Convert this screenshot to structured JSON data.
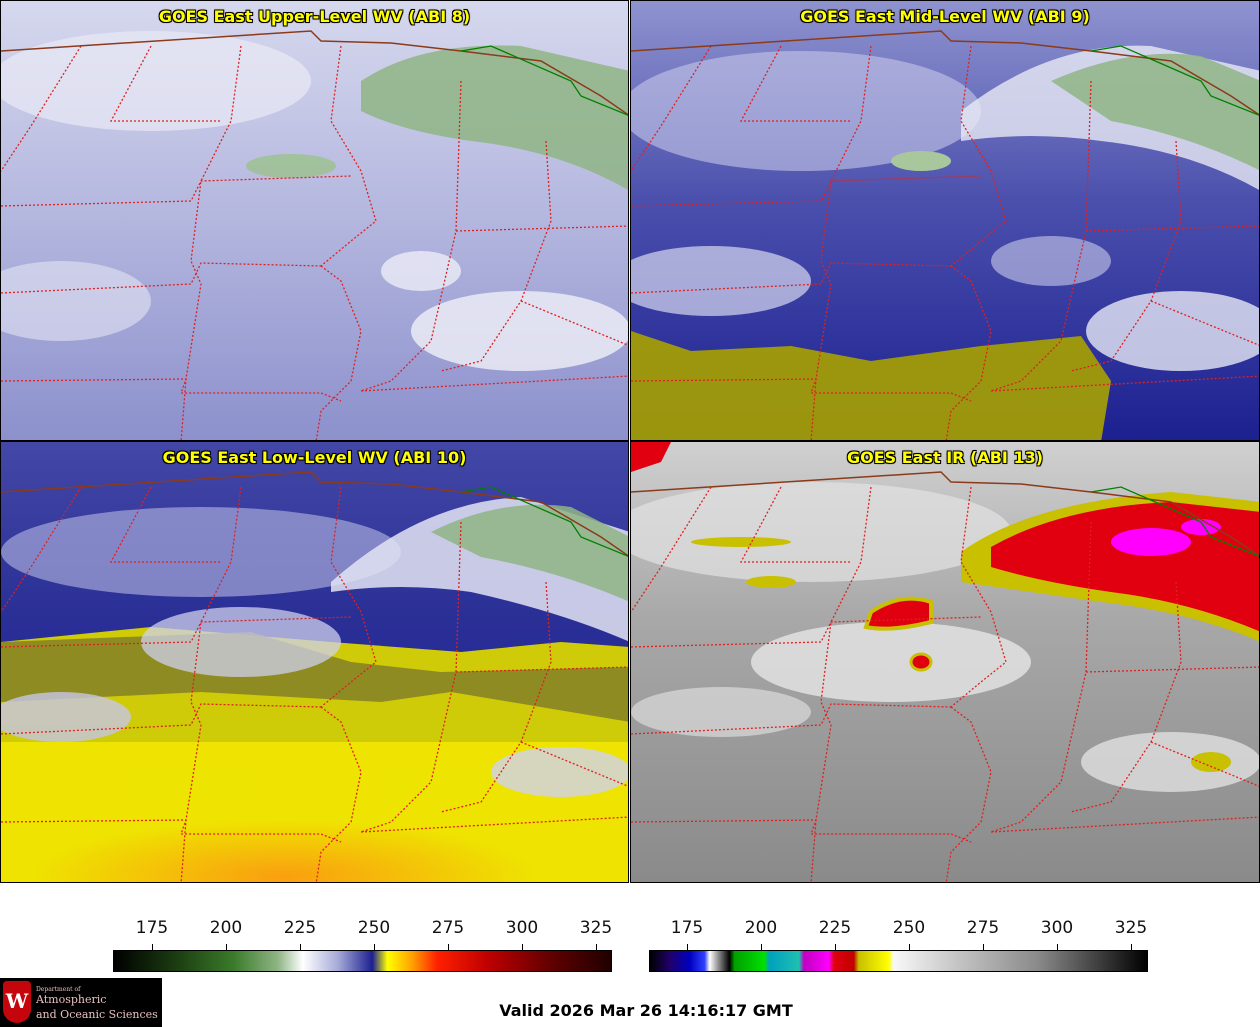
{
  "panels": [
    {
      "title": "GOES East Upper-Level WV (ABI 8)",
      "base": "#a7abd8",
      "style": "wv-upper"
    },
    {
      "title": "GOES East Mid-Level WV (ABI 9)",
      "base": "#5a5eb8",
      "style": "wv-mid"
    },
    {
      "title": "GOES East Low-Level WV (ABI 10)",
      "base": "#3a3f9e",
      "style": "wv-low"
    },
    {
      "title": "GOES East IR (ABI 13)",
      "base": "#9b9b9b",
      "style": "ir"
    }
  ],
  "colorbars": [
    {
      "name": "wv-colorbar",
      "ticks": [
        "175",
        "200",
        "225",
        "250",
        "275",
        "300",
        "325"
      ]
    },
    {
      "name": "ir-colorbar",
      "ticks": [
        "175",
        "200",
        "225",
        "250",
        "275",
        "300",
        "325"
      ]
    }
  ],
  "logo": {
    "line1": "Department of",
    "line2": "Atmospheric",
    "line3": "and Oceanic Sciences",
    "crest": "W"
  },
  "valid_time": "Valid 2026 Mar 26 14:16:17 GMT"
}
